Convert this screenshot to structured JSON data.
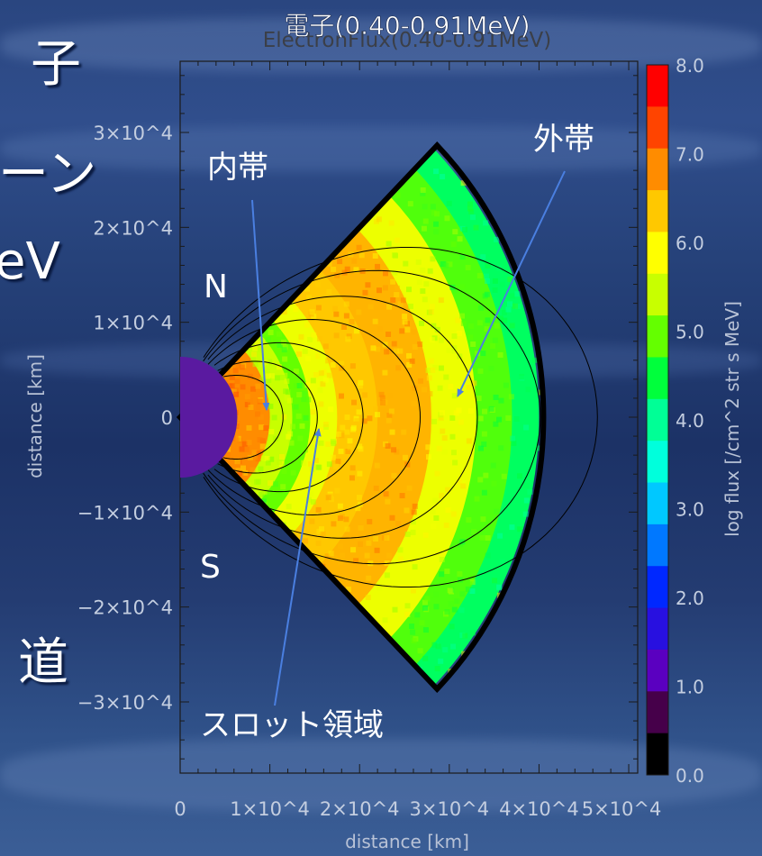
{
  "slide": {
    "left_fragments": [
      "子",
      "ーン",
      "eV",
      "道"
    ]
  },
  "annotations": {
    "title_overlay": "電子(0.40-0.91MeV)",
    "inner_belt": "内帯",
    "outer_belt": "外帯",
    "slot_region": "スロット領域",
    "north": "N",
    "south": "S"
  },
  "colorbar": {
    "label": "log flux [/cm^2 str s MeV]",
    "ticks": [
      "8.0",
      "7.0",
      "6.0",
      "5.0",
      "4.0",
      "3.0",
      "2.0",
      "1.0",
      "0.0"
    ],
    "colors": [
      "#ff0000",
      "#ff4400",
      "#ff8c00",
      "#ffc800",
      "#ffff00",
      "#c8ff00",
      "#64ff00",
      "#00ff3c",
      "#00ff96",
      "#00ffdc",
      "#00c8ff",
      "#0078ff",
      "#0028ff",
      "#2810e0",
      "#5a00c0",
      "#46004a",
      "#000000"
    ]
  },
  "chart_data": {
    "type": "heatmap",
    "title": "ElectronFlux(0.40-0.91MeV)",
    "xlabel": "distance [km]",
    "ylabel": "distance [km]",
    "x_ticks": [
      "0",
      "1×10^4",
      "2×10^4",
      "3×10^4",
      "4×10^4",
      "5×10^4"
    ],
    "y_ticks": [
      "3×10^4",
      "2×10^4",
      "1×10^4",
      "0",
      "−1×10^4",
      "−2×10^4",
      "−3×10^4"
    ],
    "x_ticks_val": [
      0,
      10000,
      20000,
      30000,
      40000,
      50000
    ],
    "y_ticks_val": [
      30000,
      20000,
      10000,
      0,
      -10000,
      -20000,
      -30000
    ],
    "xlim": [
      0,
      51000
    ],
    "ylim": [
      -37500,
      37500
    ],
    "zlim": [
      0,
      8.0
    ],
    "wedge_half_angle_deg": 45,
    "outer_radius_km": 40500,
    "radial_profile": [
      {
        "r_km": 5000,
        "log_flux": 5.8
      },
      {
        "r_km": 7500,
        "log_flux": 7.0
      },
      {
        "r_km": 10000,
        "log_flux": 7.0
      },
      {
        "r_km": 12500,
        "log_flux": 6.0
      },
      {
        "r_km": 14500,
        "log_flux": 5.5
      },
      {
        "r_km": 17500,
        "log_flux": 6.2
      },
      {
        "r_km": 22000,
        "log_flux": 6.7
      },
      {
        "r_km": 28000,
        "log_flux": 6.8
      },
      {
        "r_km": 33000,
        "log_flux": 6.2
      },
      {
        "r_km": 37000,
        "log_flux": 5.4
      },
      {
        "r_km": 40000,
        "log_flux": 4.8
      }
    ],
    "field_line_L": [
      1.8,
      2.4,
      3.2,
      4.2,
      5.2,
      6.3,
      7.3
    ]
  }
}
